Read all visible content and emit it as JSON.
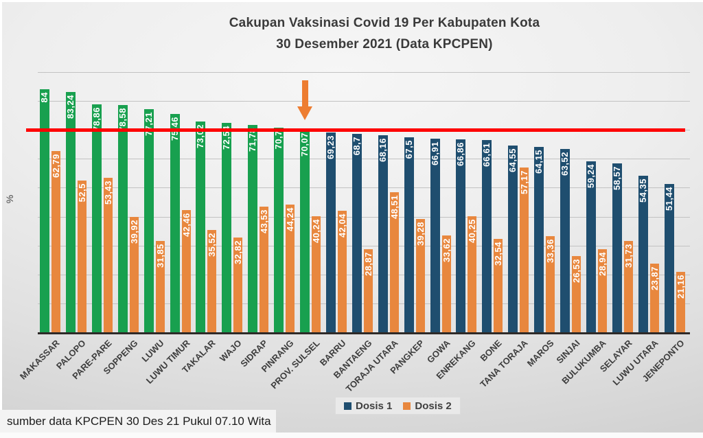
{
  "title": {
    "line1": "Cakupan Vaksinasi Covid 19 Per Kabupaten Kota",
    "line2": "30 Desember 2021 (Data KPCPEN)"
  },
  "y_axis_label": "%",
  "source_note": "sumber data KPCPEN 30 Des 21 Pukul 07.10 Wita",
  "legend": [
    {
      "label": "Dosis 1",
      "color": "#1F4E6F"
    },
    {
      "label": "Dosis 2",
      "color": "#E8873E"
    }
  ],
  "colors": {
    "dosis1_above_target_green": "#18A04F",
    "dosis1_below_target_navy": "#1F4E6F",
    "dosis2_orange": "#E8873E",
    "target_line_red": "#FE0000",
    "arrow_orange": "#ED7D31",
    "gridline": "#C2C2C2",
    "background": "#E6E6E6"
  },
  "annotations": {
    "target_line_value": 70,
    "arrow_points_to": "PROV. SULSEL"
  },
  "chart_data": {
    "type": "bar",
    "title": "Cakupan Vaksinasi Covid 19 Per Kabupaten Kota 30 Desember 2021 (Data KPCPEN)",
    "xlabel": "",
    "ylabel": "%",
    "ylim": [
      0,
      90
    ],
    "grid": true,
    "grid_step": 10,
    "legend_position": "bottom",
    "decimal_separator": "comma",
    "target_line": 70,
    "categories": [
      "MAKASSAR",
      "PALOPO",
      "PARE-PARE",
      "SOPPENG",
      "LUWU",
      "LUWU TIMUR",
      "TAKALAR",
      "WAJO",
      "SIDRAP",
      "PINRANG",
      "PROV. SULSEL",
      "BARRU",
      "BANTAENG",
      "TORAJA UTARA",
      "PANGKEP",
      "GOWA",
      "ENREKANG",
      "BONE",
      "TANA TORAJA",
      "MAROS",
      "SINJAI",
      "BULUKUMBA",
      "SELAYAR",
      "LUWU UTARA",
      "JENEPONTO"
    ],
    "series": [
      {
        "name": "Dosis 1",
        "values": [
          84,
          83.24,
          78.86,
          78.58,
          77.21,
          75.46,
          73.02,
          72.54,
          71.78,
          70.7,
          70.07,
          69.23,
          68.7,
          68.16,
          67.5,
          66.91,
          66.86,
          66.61,
          64.55,
          64.15,
          63.52,
          59.24,
          58.57,
          54.35,
          51.44
        ],
        "labels": [
          "84",
          "83,24",
          "78,86",
          "78,58",
          "77,21",
          "75,46",
          "73,02",
          "72,54",
          "71,78",
          "70,7",
          "70,07",
          "69,23",
          "68,7",
          "68,16",
          "67,5",
          "66,91",
          "66,86",
          "66,61",
          "64,55",
          "64,15",
          "63,52",
          "59,24",
          "58,57",
          "54,35",
          "51,44"
        ],
        "green_through_category": "PROV. SULSEL"
      },
      {
        "name": "Dosis 2",
        "values": [
          62.79,
          52.5,
          53.43,
          39.92,
          31.85,
          42.46,
          35.52,
          32.82,
          43.53,
          44.24,
          40.24,
          42.04,
          28.87,
          48.51,
          39.28,
          33.62,
          40.25,
          32.54,
          57.17,
          33.36,
          26.53,
          28.94,
          31.73,
          23.87,
          21.16
        ],
        "labels": [
          "62,79",
          "52,5",
          "53,43",
          "39,92",
          "31,85",
          "42,46",
          "35,52",
          "32,82",
          "43,53",
          "44,24",
          "40,24",
          "42,04",
          "28,87",
          "48,51",
          "39,28",
          "33,62",
          "40,25",
          "32,54",
          "57,17",
          "33,36",
          "26,53",
          "28,94",
          "31,73",
          "23,87",
          "21,16"
        ]
      }
    ]
  }
}
